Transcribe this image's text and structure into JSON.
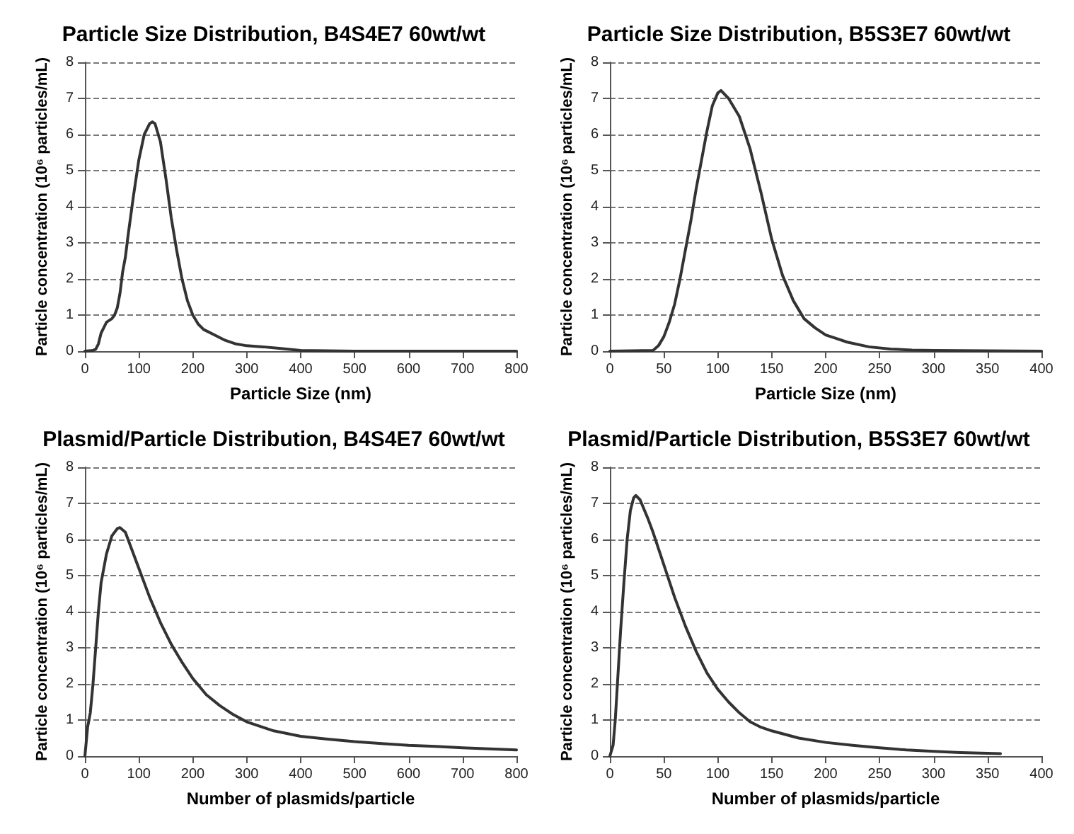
{
  "chart_data": [
    {
      "type": "line",
      "title": "Particle Size Distribution, B4S4E7 60wt/wt",
      "xlabel": "Particle Size (nm)",
      "ylabel": "Particle concentration (10⁶ particles/mL)",
      "xlim": [
        0,
        800
      ],
      "xticks": [
        0,
        100,
        200,
        300,
        400,
        500,
        600,
        700,
        800
      ],
      "ylim": [
        0,
        8
      ],
      "yticks": [
        0,
        1,
        2,
        3,
        4,
        5,
        6,
        7,
        8
      ],
      "grid": "y",
      "marker": "none",
      "line_style": "solid",
      "series": [
        {
          "color": "#333333",
          "x": [
            0,
            15,
            20,
            25,
            30,
            35,
            40,
            45,
            50,
            55,
            60,
            65,
            70,
            75,
            80,
            90,
            100,
            110,
            120,
            125,
            130,
            140,
            150,
            160,
            170,
            180,
            190,
            200,
            210,
            220,
            240,
            260,
            280,
            300,
            330,
            360,
            400,
            450,
            500,
            800
          ],
          "values": [
            0,
            0.02,
            0.05,
            0.2,
            0.5,
            0.65,
            0.8,
            0.85,
            0.9,
            1.0,
            1.2,
            1.6,
            2.2,
            2.6,
            3.2,
            4.3,
            5.3,
            6.0,
            6.3,
            6.35,
            6.3,
            5.8,
            4.8,
            3.7,
            2.8,
            2.0,
            1.4,
            1.0,
            0.75,
            0.6,
            0.45,
            0.3,
            0.2,
            0.15,
            0.12,
            0.08,
            0.02,
            0.01,
            0,
            0
          ]
        }
      ]
    },
    {
      "type": "line",
      "title": "Particle Size Distribution, B5S3E7 60wt/wt",
      "xlabel": "Particle Size (nm)",
      "ylabel": "Particle concentration (10⁶ particles/mL)",
      "xlim": [
        0,
        400
      ],
      "xticks": [
        0,
        50,
        100,
        150,
        200,
        250,
        300,
        350,
        400
      ],
      "ylim": [
        0,
        8
      ],
      "yticks": [
        0,
        1,
        2,
        3,
        4,
        5,
        6,
        7,
        8
      ],
      "grid": "y",
      "marker": "none",
      "line_style": "solid",
      "series": [
        {
          "color": "#333333",
          "x": [
            0,
            40,
            45,
            50,
            55,
            60,
            65,
            70,
            75,
            80,
            85,
            90,
            95,
            100,
            103,
            110,
            120,
            130,
            140,
            150,
            160,
            170,
            180,
            190,
            200,
            210,
            220,
            240,
            260,
            280,
            300,
            350,
            400
          ],
          "values": [
            0,
            0.02,
            0.15,
            0.4,
            0.8,
            1.3,
            2.0,
            2.8,
            3.6,
            4.5,
            5.3,
            6.1,
            6.8,
            7.15,
            7.22,
            7.0,
            6.5,
            5.6,
            4.4,
            3.1,
            2.1,
            1.4,
            0.9,
            0.65,
            0.45,
            0.35,
            0.25,
            0.12,
            0.06,
            0.03,
            0.02,
            0.01,
            0
          ]
        }
      ]
    },
    {
      "type": "line",
      "title": "Plasmid/Particle Distribution, B4S4E7 60wt/wt",
      "xlabel": "Number of plasmids/particle",
      "ylabel": "Particle concentration (10⁶ particles/mL)",
      "xlim": [
        0,
        800
      ],
      "xticks": [
        0,
        100,
        200,
        300,
        400,
        500,
        600,
        700,
        800
      ],
      "ylim": [
        0,
        8
      ],
      "yticks": [
        0,
        1,
        2,
        3,
        4,
        5,
        6,
        7,
        8
      ],
      "grid": "y",
      "marker": "none",
      "line_style": "solid",
      "series": [
        {
          "color": "#333333",
          "x": [
            0,
            5,
            10,
            15,
            20,
            25,
            30,
            40,
            50,
            60,
            65,
            75,
            85,
            100,
            120,
            140,
            160,
            180,
            200,
            225,
            250,
            275,
            300,
            350,
            400,
            450,
            500,
            550,
            600,
            650,
            700,
            750,
            800
          ],
          "values": [
            0,
            0.8,
            1.2,
            2.0,
            3.0,
            4.0,
            4.8,
            5.6,
            6.1,
            6.3,
            6.33,
            6.2,
            5.8,
            5.2,
            4.4,
            3.7,
            3.1,
            2.6,
            2.15,
            1.7,
            1.4,
            1.15,
            0.95,
            0.7,
            0.55,
            0.47,
            0.4,
            0.35,
            0.3,
            0.27,
            0.23,
            0.2,
            0.17
          ]
        }
      ]
    },
    {
      "type": "line",
      "title": "Plasmid/Particle Distribution, B5S3E7 60wt/wt",
      "xlabel": "Number of plasmids/particle",
      "ylabel": "Particle concentration (10⁶ particles/mL)",
      "xlim": [
        0,
        400
      ],
      "xticks": [
        0,
        50,
        100,
        150,
        200,
        250,
        300,
        350,
        400
      ],
      "ylim": [
        0,
        8
      ],
      "yticks": [
        0,
        1,
        2,
        3,
        4,
        5,
        6,
        7,
        8
      ],
      "grid": "y",
      "marker": "none",
      "line_style": "solid",
      "series": [
        {
          "color": "#333333",
          "x": [
            0,
            3,
            5,
            8,
            10,
            13,
            16,
            19,
            22,
            24,
            28,
            35,
            40,
            50,
            60,
            70,
            80,
            90,
            100,
            110,
            120,
            130,
            140,
            150,
            175,
            200,
            225,
            250,
            275,
            300,
            325,
            350,
            362
          ],
          "values": [
            0,
            0.3,
            1.0,
            2.5,
            3.5,
            4.8,
            6.0,
            6.8,
            7.15,
            7.22,
            7.1,
            6.6,
            6.2,
            5.3,
            4.4,
            3.6,
            2.9,
            2.3,
            1.85,
            1.5,
            1.2,
            0.95,
            0.8,
            0.7,
            0.5,
            0.38,
            0.3,
            0.23,
            0.17,
            0.13,
            0.1,
            0.08,
            0.07
          ]
        }
      ]
    }
  ]
}
